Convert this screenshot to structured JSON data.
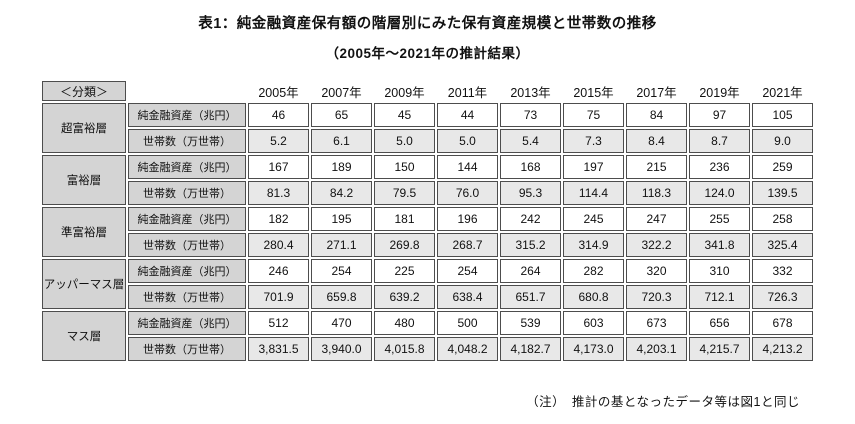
{
  "title": "表1：純金融資産保有額の階層別にみた保有資産規模と世帯数の推移",
  "subtitle": "（2005年～2021年の推計結果）",
  "note": "（注）　推計の基となったデータ等は図1と同じ",
  "chart_data": {
    "type": "table",
    "title": "表1：純金融資産保有額の階層別にみた保有資産規模と世帯数の推移",
    "subtitle": "（2005年～2021年の推計結果）",
    "corner_label": "＜分類＞",
    "columns": [
      "2005年",
      "2007年",
      "2009年",
      "2011年",
      "2013年",
      "2015年",
      "2017年",
      "2019年",
      "2021年"
    ],
    "groups": [
      {
        "category": "超富裕層",
        "rows": [
          {
            "label": "純金融資産（兆円）",
            "values": [
              "46",
              "65",
              "45",
              "44",
              "73",
              "75",
              "84",
              "97",
              "105"
            ]
          },
          {
            "label": "世帯数（万世帯）",
            "values": [
              "5.2",
              "6.1",
              "5.0",
              "5.0",
              "5.4",
              "7.3",
              "8.4",
              "8.7",
              "9.0"
            ]
          }
        ]
      },
      {
        "category": "富裕層",
        "rows": [
          {
            "label": "純金融資産（兆円）",
            "values": [
              "167",
              "189",
              "150",
              "144",
              "168",
              "197",
              "215",
              "236",
              "259"
            ]
          },
          {
            "label": "世帯数（万世帯）",
            "values": [
              "81.3",
              "84.2",
              "79.5",
              "76.0",
              "95.3",
              "114.4",
              "118.3",
              "124.0",
              "139.5"
            ]
          }
        ]
      },
      {
        "category": "準富裕層",
        "rows": [
          {
            "label": "純金融資産（兆円）",
            "values": [
              "182",
              "195",
              "181",
              "196",
              "242",
              "245",
              "247",
              "255",
              "258"
            ]
          },
          {
            "label": "世帯数（万世帯）",
            "values": [
              "280.4",
              "271.1",
              "269.8",
              "268.7",
              "315.2",
              "314.9",
              "322.2",
              "341.8",
              "325.4"
            ]
          }
        ]
      },
      {
        "category": "アッパーマス層",
        "rows": [
          {
            "label": "純金融資産（兆円）",
            "values": [
              "246",
              "254",
              "225",
              "254",
              "264",
              "282",
              "320",
              "310",
              "332"
            ]
          },
          {
            "label": "世帯数（万世帯）",
            "values": [
              "701.9",
              "659.8",
              "639.2",
              "638.4",
              "651.7",
              "680.8",
              "720.3",
              "712.1",
              "726.3"
            ]
          }
        ]
      },
      {
        "category": "マス層",
        "rows": [
          {
            "label": "純金融資産（兆円）",
            "values": [
              "512",
              "470",
              "480",
              "500",
              "539",
              "603",
              "673",
              "656",
              "678"
            ]
          },
          {
            "label": "世帯数（万世帯）",
            "values": [
              "3,831.5",
              "3,940.0",
              "4,015.8",
              "4,048.2",
              "4,182.7",
              "4,173.0",
              "4,203.1",
              "4,215.7",
              "4,213.2"
            ]
          }
        ]
      }
    ],
    "layout": {
      "legend": "none",
      "grid": "boxed-cells"
    },
    "colors": {
      "header_cell_bg": "#d4d4d4",
      "label_cell_bg": "#d4d4d4",
      "household_row_bg": "#e8e8e8",
      "asset_row_bg": "#ffffff",
      "cell_border": "#4d4d4d",
      "text": "#111111",
      "page_bg": "#ffffff"
    }
  }
}
